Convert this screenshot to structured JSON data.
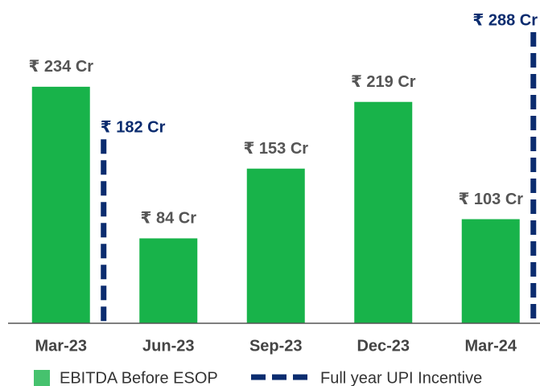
{
  "chart_data": {
    "type": "bar",
    "categories": [
      "Mar-23",
      "Jun-23",
      "Sep-23",
      "Dec-23",
      "Mar-24"
    ],
    "series": [
      {
        "name": "EBITDA Before ESOP",
        "color": "#18b34a",
        "values": [
          234,
          84,
          153,
          219,
          103
        ],
        "value_labels": [
          "₹ 234 Cr",
          "₹ 84 Cr",
          "₹ 153 Cr",
          "₹ 219 Cr",
          "₹ 103 Cr"
        ]
      },
      {
        "name": "Full year UPI Incentive",
        "color": "#0b2c6f",
        "style": "dashed",
        "values": [
          182,
          null,
          null,
          null,
          288
        ],
        "value_labels": [
          "₹ 182 Cr",
          null,
          null,
          null,
          "₹ 288 Cr"
        ]
      }
    ]
  }
}
